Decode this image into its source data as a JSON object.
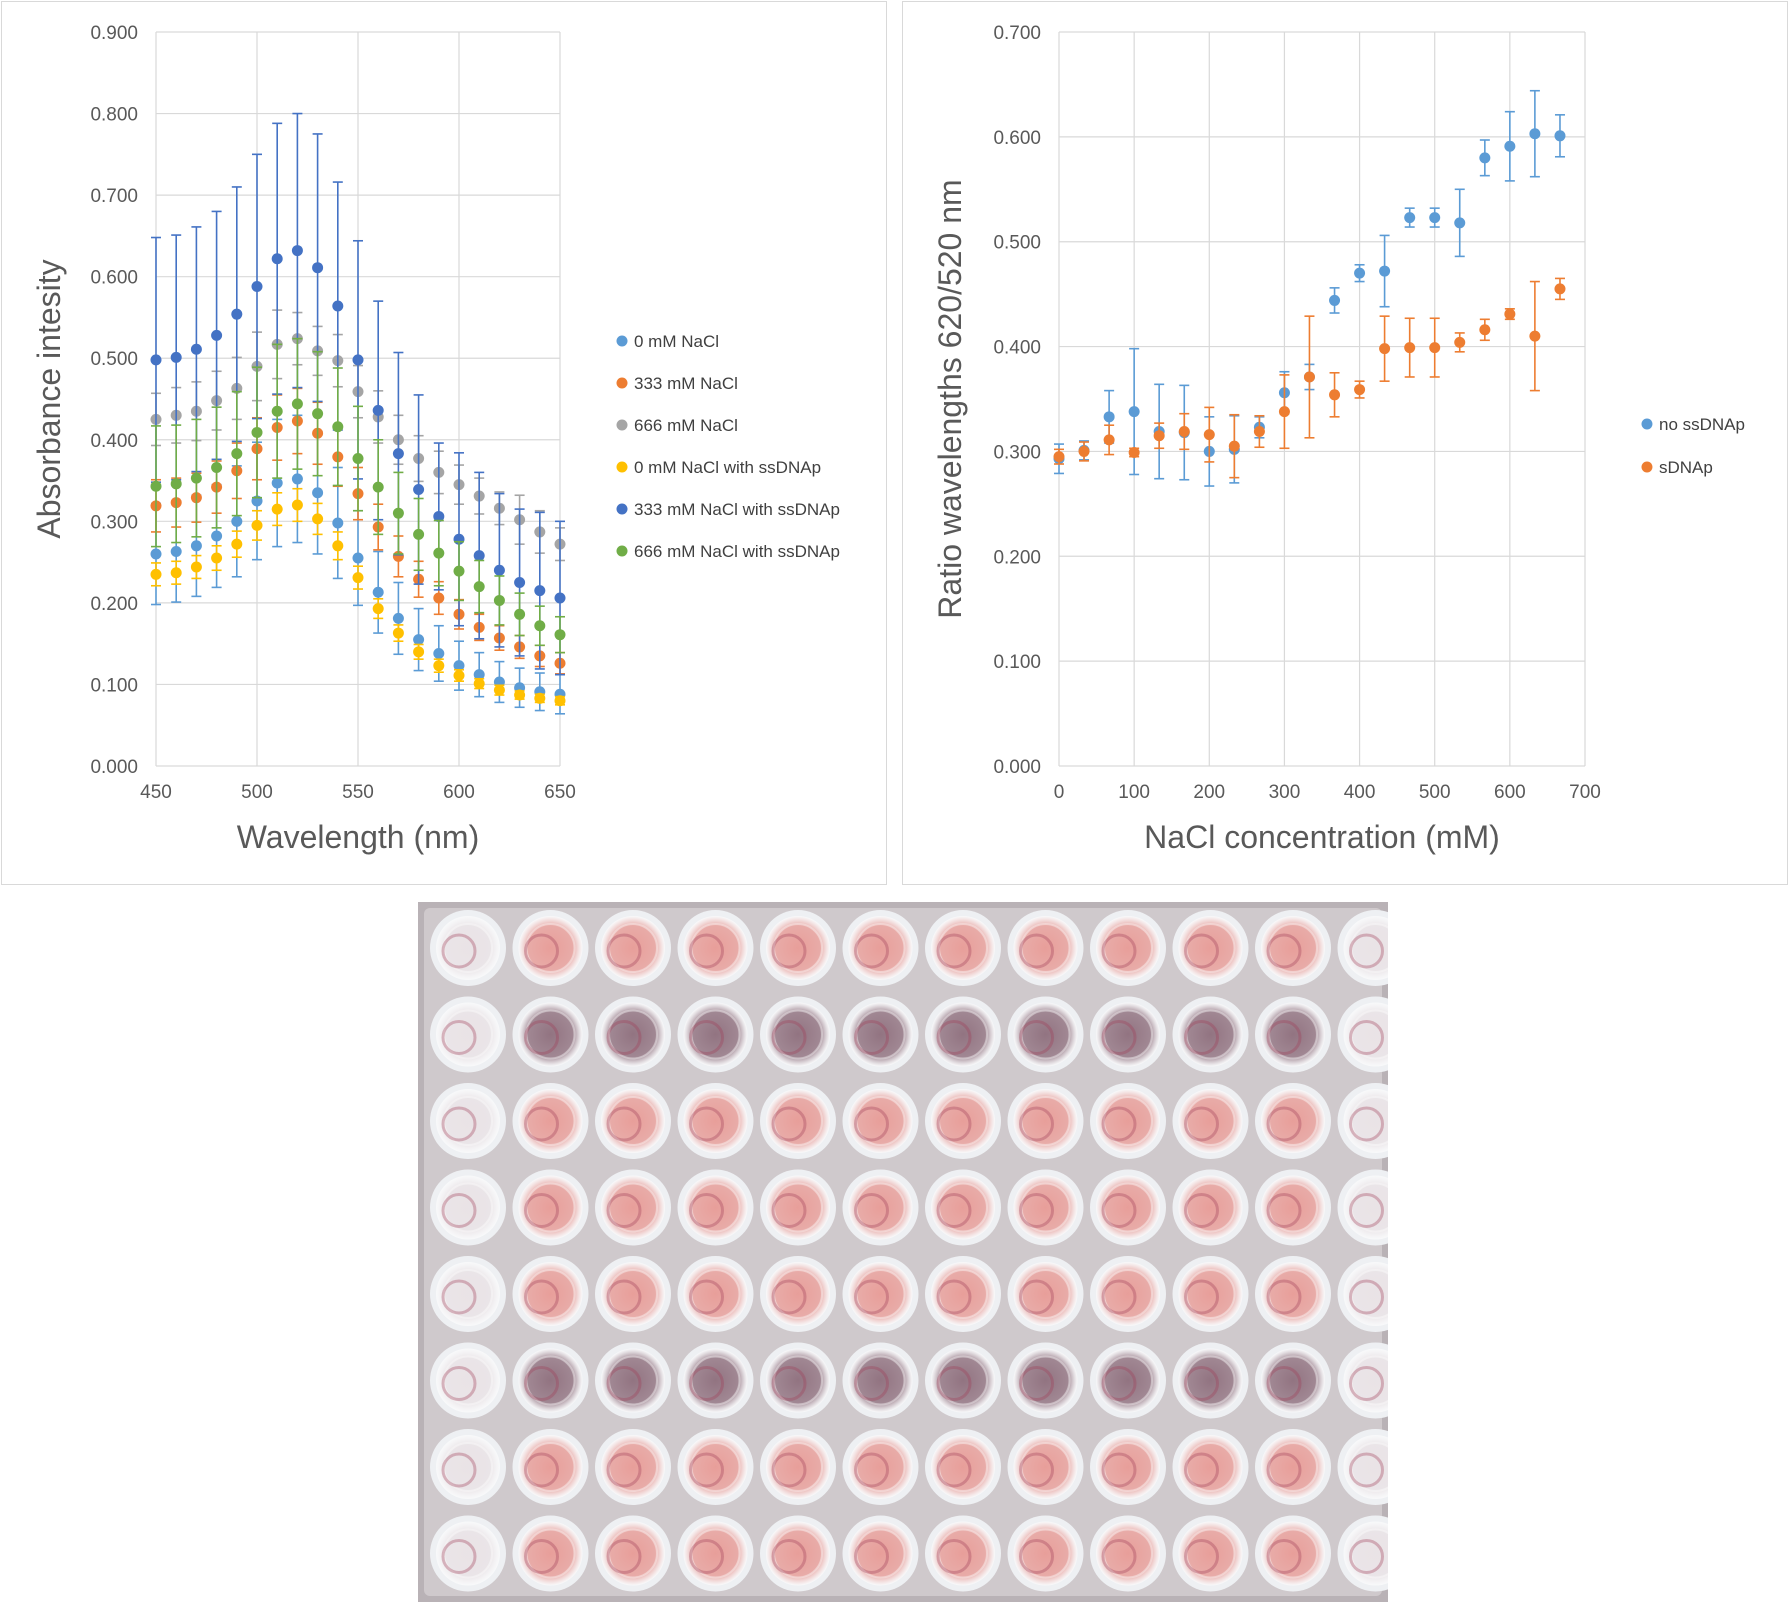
{
  "chart_data": [
    {
      "type": "scatter",
      "title": "",
      "xlabel": "Wavelength (nm)",
      "ylabel": "Absorbance intesity",
      "xlim": [
        450,
        650
      ],
      "ylim": [
        0,
        0.9
      ],
      "x_ticks": [
        "450",
        "500",
        "550",
        "600",
        "650"
      ],
      "y_ticks": [
        "0.000",
        "0.100",
        "0.200",
        "0.300",
        "0.400",
        "0.500",
        "0.600",
        "0.700",
        "0.800",
        "0.900"
      ],
      "legend_position": "right",
      "grid": true,
      "x": [
        450,
        460,
        470,
        480,
        490,
        500,
        510,
        520,
        530,
        540,
        550,
        560,
        570,
        580,
        590,
        600,
        610,
        620,
        630,
        640,
        650
      ],
      "series": [
        {
          "name": "0 mM NaCl",
          "color": "#5B9BD5",
          "values": [
            0.26,
            0.263,
            0.27,
            0.282,
            0.3,
            0.325,
            0.347,
            0.352,
            0.335,
            0.298,
            0.255,
            0.213,
            0.181,
            0.155,
            0.138,
            0.123,
            0.112,
            0.103,
            0.096,
            0.091,
            0.088
          ],
          "errors": [
            0.062,
            0.062,
            0.062,
            0.063,
            0.068,
            0.072,
            0.078,
            0.078,
            0.075,
            0.068,
            0.058,
            0.05,
            0.044,
            0.038,
            0.034,
            0.03,
            0.027,
            0.025,
            0.024,
            0.023,
            0.024
          ]
        },
        {
          "name": "333 mM NaCl",
          "color": "#ED7D31",
          "values": [
            0.319,
            0.323,
            0.329,
            0.342,
            0.362,
            0.389,
            0.415,
            0.423,
            0.408,
            0.379,
            0.334,
            0.293,
            0.257,
            0.229,
            0.206,
            0.186,
            0.17,
            0.157,
            0.146,
            0.135,
            0.126
          ],
          "errors": [
            0.032,
            0.03,
            0.03,
            0.032,
            0.034,
            0.038,
            0.04,
            0.04,
            0.038,
            0.036,
            0.032,
            0.028,
            0.025,
            0.022,
            0.02,
            0.018,
            0.016,
            0.015,
            0.014,
            0.013,
            0.013
          ]
        },
        {
          "name": "666 mM NaCl",
          "color": "#A5A5A5",
          "values": [
            0.425,
            0.43,
            0.435,
            0.448,
            0.463,
            0.49,
            0.517,
            0.524,
            0.509,
            0.497,
            0.459,
            0.428,
            0.4,
            0.377,
            0.36,
            0.345,
            0.331,
            0.316,
            0.302,
            0.287,
            0.272
          ],
          "errors": [
            0.032,
            0.034,
            0.036,
            0.036,
            0.038,
            0.042,
            0.042,
            0.032,
            0.03,
            0.032,
            0.032,
            0.032,
            0.03,
            0.028,
            0.026,
            0.024,
            0.022,
            0.02,
            0.03,
            0.026,
            0.02
          ]
        },
        {
          "name": "0 mM NaCl with ssDNAp",
          "color": "#FFC000",
          "values": [
            0.235,
            0.237,
            0.244,
            0.255,
            0.272,
            0.295,
            0.315,
            0.32,
            0.303,
            0.27,
            0.231,
            0.193,
            0.163,
            0.14,
            0.123,
            0.111,
            0.101,
            0.093,
            0.087,
            0.083,
            0.08
          ],
          "errors": [
            0.014,
            0.014,
            0.014,
            0.015,
            0.016,
            0.018,
            0.02,
            0.02,
            0.019,
            0.017,
            0.014,
            0.012,
            0.01,
            0.009,
            0.008,
            0.007,
            0.006,
            0.006,
            0.005,
            0.005,
            0.005
          ]
        },
        {
          "name": "333 mM NaCl with ssDNAp",
          "color": "#4472C4",
          "values": [
            0.498,
            0.501,
            0.511,
            0.528,
            0.554,
            0.588,
            0.622,
            0.632,
            0.611,
            0.564,
            0.498,
            0.436,
            0.383,
            0.339,
            0.306,
            0.278,
            0.258,
            0.24,
            0.225,
            0.215,
            0.206
          ],
          "errors": [
            0.15,
            0.15,
            0.15,
            0.152,
            0.156,
            0.162,
            0.166,
            0.168,
            0.164,
            0.152,
            0.146,
            0.134,
            0.124,
            0.116,
            0.09,
            0.106,
            0.102,
            0.094,
            0.09,
            0.096,
            0.094
          ]
        },
        {
          "name": "666 mM NaCl with ssDNAp",
          "color": "#70AD47",
          "values": [
            0.343,
            0.346,
            0.353,
            0.366,
            0.383,
            0.409,
            0.435,
            0.444,
            0.432,
            0.416,
            0.377,
            0.342,
            0.31,
            0.284,
            0.261,
            0.239,
            0.22,
            0.203,
            0.186,
            0.172,
            0.161
          ],
          "errors": [
            0.074,
            0.072,
            0.072,
            0.074,
            0.076,
            0.08,
            0.082,
            0.08,
            0.076,
            0.072,
            0.064,
            0.058,
            0.05,
            0.044,
            0.04,
            0.036,
            0.032,
            0.03,
            0.026,
            0.024,
            0.022
          ]
        }
      ]
    },
    {
      "type": "scatter",
      "title": "",
      "xlabel": "NaCl concentration (mM)",
      "ylabel": "Ratio wavelengths 620/520 nm",
      "xlim": [
        0,
        700
      ],
      "ylim": [
        0,
        0.7
      ],
      "x_ticks": [
        "0",
        "100",
        "200",
        "300",
        "400",
        "500",
        "600",
        "700"
      ],
      "y_ticks": [
        "0.000",
        "0.100",
        "0.200",
        "0.300",
        "0.400",
        "0.500",
        "0.600",
        "0.700"
      ],
      "legend_position": "right",
      "grid": true,
      "x": [
        0,
        33.3,
        66.7,
        100,
        133.3,
        166.7,
        200,
        233.3,
        266.7,
        300,
        333.3,
        366.7,
        400,
        433.3,
        466.7,
        500,
        533.3,
        566.7,
        600,
        633.3,
        666.7
      ],
      "series": [
        {
          "name": "no ssDNAp",
          "color": "#5B9BD5",
          "values": [
            0.293,
            0.301,
            0.333,
            0.338,
            0.319,
            0.318,
            0.3,
            0.302,
            0.323,
            0.356,
            0.371,
            0.444,
            0.47,
            0.472,
            0.523,
            0.523,
            0.518,
            0.58,
            0.591,
            0.603,
            0.601
          ],
          "errors": [
            0.014,
            0.009,
            0.025,
            0.06,
            0.045,
            0.045,
            0.033,
            0.032,
            0.01,
            0.02,
            0.012,
            0.012,
            0.008,
            0.034,
            0.009,
            0.009,
            0.032,
            0.017,
            0.033,
            0.041,
            0.02
          ]
        },
        {
          "name": "sDNAp",
          "color": "#ED7D31",
          "values": [
            0.295,
            0.3,
            0.311,
            0.299,
            0.315,
            0.319,
            0.316,
            0.305,
            0.319,
            0.338,
            0.371,
            0.354,
            0.359,
            0.398,
            0.399,
            0.399,
            0.404,
            0.416,
            0.431,
            0.41,
            0.455
          ],
          "errors": [
            0.007,
            0.009,
            0.014,
            0.004,
            0.012,
            0.017,
            0.026,
            0.03,
            0.015,
            0.035,
            0.058,
            0.021,
            0.008,
            0.031,
            0.028,
            0.028,
            0.009,
            0.01,
            0.005,
            0.052,
            0.01
          ]
        }
      ]
    }
  ],
  "photo": {
    "subject": "96-well plate with gold nanoparticle solutions",
    "rows": 8,
    "cols": 12,
    "colors": {
      "background": "#b9b2b6",
      "well_rim": "#eef0f3",
      "pink": "#e79a95",
      "purple": "#8d6d7b",
      "empty": "#e9e2e5"
    },
    "row_tints": [
      "pink",
      "purple",
      "pink",
      "pink",
      "pink",
      "purple",
      "pink",
      "pink"
    ]
  }
}
